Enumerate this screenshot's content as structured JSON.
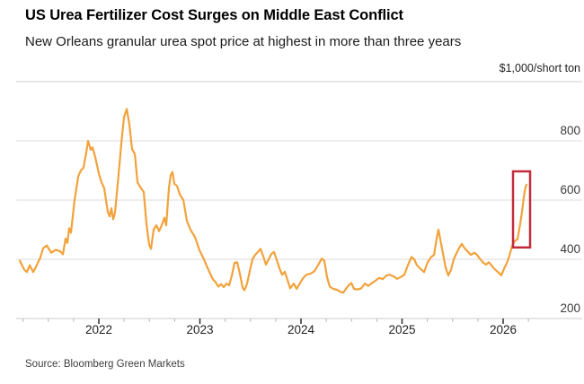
{
  "header": {
    "title": "US Urea Fertilizer Cost Surges on Middle East Conflict",
    "subtitle": "New Orleans granular urea spot price at highest in more than three years"
  },
  "chart": {
    "unit_label": "$1,000/short ton"
  },
  "footer": {
    "source": "Source: Bloomberg Green Markets"
  },
  "colors": {
    "line": "#F2A23B",
    "annotation_box": "#C22C3D",
    "grid": "#DBDBDB",
    "top_rule": "#CFCFCF",
    "axis_line": "#CCCCCC",
    "tick_minor": "#ADADAD",
    "tick_major": "#2B2B2B"
  },
  "chart_data": {
    "type": "line",
    "title": "US Urea Fertilizer Cost Surges on Middle East Conflict",
    "subtitle": "New Orleans granular urea spot price at highest in more than three years",
    "ylabel": "$1,000/short ton",
    "xlabel": "",
    "ylim": [
      200,
      1000
    ],
    "xlim": [
      2021.18,
      2026.78
    ],
    "grid": "horizontal",
    "legend": "none",
    "y_ticks": [
      800,
      600,
      400,
      200
    ],
    "y_gridlines": [
      1000,
      800,
      600,
      400,
      200
    ],
    "x_ticks": [
      2022,
      2023,
      2024,
      2025,
      2026
    ],
    "x_minor_tick_interval": 0.25,
    "x_minor_tick_range": [
      2021.25,
      2026.25
    ],
    "series": [
      {
        "name": "New Orleans granular urea spot price",
        "color": "#F2A23B",
        "points": [
          [
            2021.218,
            395
          ],
          [
            2021.262,
            365
          ],
          [
            2021.289,
            357
          ],
          [
            2021.316,
            380
          ],
          [
            2021.351,
            357
          ],
          [
            2021.378,
            374
          ],
          [
            2021.422,
            407
          ],
          [
            2021.449,
            437
          ],
          [
            2021.484,
            447
          ],
          [
            2021.529,
            422
          ],
          [
            2021.573,
            432
          ],
          [
            2021.618,
            427
          ],
          [
            2021.644,
            417
          ],
          [
            2021.671,
            470
          ],
          [
            2021.689,
            455
          ],
          [
            2021.707,
            505
          ],
          [
            2021.724,
            490
          ],
          [
            2021.76,
            600
          ],
          [
            2021.796,
            680
          ],
          [
            2021.822,
            700
          ],
          [
            2021.849,
            710
          ],
          [
            2021.876,
            762
          ],
          [
            2021.893,
            800
          ],
          [
            2021.92,
            770
          ],
          [
            2021.938,
            778
          ],
          [
            2021.964,
            745
          ],
          [
            2022.0,
            690
          ],
          [
            2022.027,
            660
          ],
          [
            2022.053,
            640
          ],
          [
            2022.071,
            600
          ],
          [
            2022.089,
            560
          ],
          [
            2022.107,
            545
          ],
          [
            2022.124,
            572
          ],
          [
            2022.142,
            535
          ],
          [
            2022.16,
            558
          ],
          [
            2022.196,
            690
          ],
          [
            2022.222,
            790
          ],
          [
            2022.249,
            880
          ],
          [
            2022.276,
            908
          ],
          [
            2022.302,
            855
          ],
          [
            2022.329,
            772
          ],
          [
            2022.356,
            755
          ],
          [
            2022.382,
            660
          ],
          [
            2022.418,
            640
          ],
          [
            2022.444,
            627
          ],
          [
            2022.471,
            520
          ],
          [
            2022.498,
            450
          ],
          [
            2022.516,
            435
          ],
          [
            2022.542,
            500
          ],
          [
            2022.569,
            515
          ],
          [
            2022.596,
            495
          ],
          [
            2022.622,
            515
          ],
          [
            2022.649,
            540
          ],
          [
            2022.667,
            515
          ],
          [
            2022.693,
            640
          ],
          [
            2022.711,
            685
          ],
          [
            2022.729,
            695
          ],
          [
            2022.747,
            655
          ],
          [
            2022.773,
            648
          ],
          [
            2022.8,
            620
          ],
          [
            2022.836,
            600
          ],
          [
            2022.871,
            530
          ],
          [
            2022.907,
            500
          ],
          [
            2022.951,
            475
          ],
          [
            2022.996,
            430
          ],
          [
            2023.04,
            400
          ],
          [
            2023.067,
            378
          ],
          [
            2023.093,
            358
          ],
          [
            2023.129,
            332
          ],
          [
            2023.156,
            322
          ],
          [
            2023.182,
            308
          ],
          [
            2023.209,
            316
          ],
          [
            2023.236,
            306
          ],
          [
            2023.262,
            318
          ],
          [
            2023.289,
            312
          ],
          [
            2023.316,
            345
          ],
          [
            2023.342,
            388
          ],
          [
            2023.369,
            390
          ],
          [
            2023.396,
            350
          ],
          [
            2023.422,
            305
          ],
          [
            2023.44,
            295
          ],
          [
            2023.467,
            318
          ],
          [
            2023.493,
            360
          ],
          [
            2023.52,
            400
          ],
          [
            2023.547,
            415
          ],
          [
            2023.573,
            425
          ],
          [
            2023.6,
            435
          ],
          [
            2023.627,
            410
          ],
          [
            2023.653,
            382
          ],
          [
            2023.68,
            400
          ],
          [
            2023.707,
            418
          ],
          [
            2023.733,
            425
          ],
          [
            2023.76,
            398
          ],
          [
            2023.787,
            370
          ],
          [
            2023.813,
            348
          ],
          [
            2023.84,
            358
          ],
          [
            2023.867,
            330
          ],
          [
            2023.893,
            302
          ],
          [
            2023.929,
            318
          ],
          [
            2023.956,
            300
          ],
          [
            2023.991,
            320
          ],
          [
            2024.018,
            335
          ],
          [
            2024.053,
            348
          ],
          [
            2024.098,
            352
          ],
          [
            2024.133,
            360
          ],
          [
            2024.169,
            380
          ],
          [
            2024.204,
            402
          ],
          [
            2024.231,
            395
          ],
          [
            2024.258,
            340
          ],
          [
            2024.284,
            308
          ],
          [
            2024.32,
            300
          ],
          [
            2024.356,
            297
          ],
          [
            2024.391,
            290
          ],
          [
            2024.418,
            287
          ],
          [
            2024.444,
            300
          ],
          [
            2024.471,
            312
          ],
          [
            2024.498,
            320
          ],
          [
            2024.524,
            300
          ],
          [
            2024.56,
            298
          ],
          [
            2024.596,
            302
          ],
          [
            2024.631,
            318
          ],
          [
            2024.667,
            310
          ],
          [
            2024.702,
            320
          ],
          [
            2024.738,
            328
          ],
          [
            2024.773,
            337
          ],
          [
            2024.809,
            333
          ],
          [
            2024.844,
            345
          ],
          [
            2024.88,
            348
          ],
          [
            2024.916,
            342
          ],
          [
            2024.951,
            334
          ],
          [
            2024.987,
            340
          ],
          [
            2025.022,
            348
          ],
          [
            2025.058,
            380
          ],
          [
            2025.093,
            408
          ],
          [
            2025.12,
            400
          ],
          [
            2025.147,
            380
          ],
          [
            2025.182,
            368
          ],
          [
            2025.218,
            357
          ],
          [
            2025.253,
            390
          ],
          [
            2025.289,
            408
          ],
          [
            2025.316,
            415
          ],
          [
            2025.342,
            470
          ],
          [
            2025.36,
            500
          ],
          [
            2025.378,
            468
          ],
          [
            2025.404,
            420
          ],
          [
            2025.431,
            372
          ],
          [
            2025.458,
            345
          ],
          [
            2025.484,
            365
          ],
          [
            2025.511,
            400
          ],
          [
            2025.538,
            420
          ],
          [
            2025.564,
            438
          ],
          [
            2025.591,
            452
          ],
          [
            2025.618,
            438
          ],
          [
            2025.644,
            428
          ],
          [
            2025.68,
            415
          ],
          [
            2025.716,
            422
          ],
          [
            2025.742,
            415
          ],
          [
            2025.769,
            402
          ],
          [
            2025.804,
            388
          ],
          [
            2025.831,
            382
          ],
          [
            2025.858,
            390
          ],
          [
            2025.884,
            380
          ],
          [
            2025.911,
            368
          ],
          [
            2025.938,
            360
          ],
          [
            2025.964,
            352
          ],
          [
            2025.982,
            346
          ],
          [
            2026.009,
            368
          ],
          [
            2026.036,
            388
          ],
          [
            2026.062,
            412
          ],
          [
            2026.089,
            445
          ],
          [
            2026.116,
            462
          ],
          [
            2026.142,
            468
          ],
          [
            2026.169,
            520
          ],
          [
            2026.187,
            560
          ],
          [
            2026.204,
            610
          ],
          [
            2026.222,
            645
          ],
          [
            2026.231,
            652
          ]
        ]
      }
    ],
    "annotations": [
      {
        "type": "rect",
        "label": "highlight-of-2026-price-spike",
        "x0": 2026.098,
        "x1": 2026.267,
        "y0": 440,
        "y1": 697,
        "stroke": "#C22C3D"
      }
    ]
  }
}
